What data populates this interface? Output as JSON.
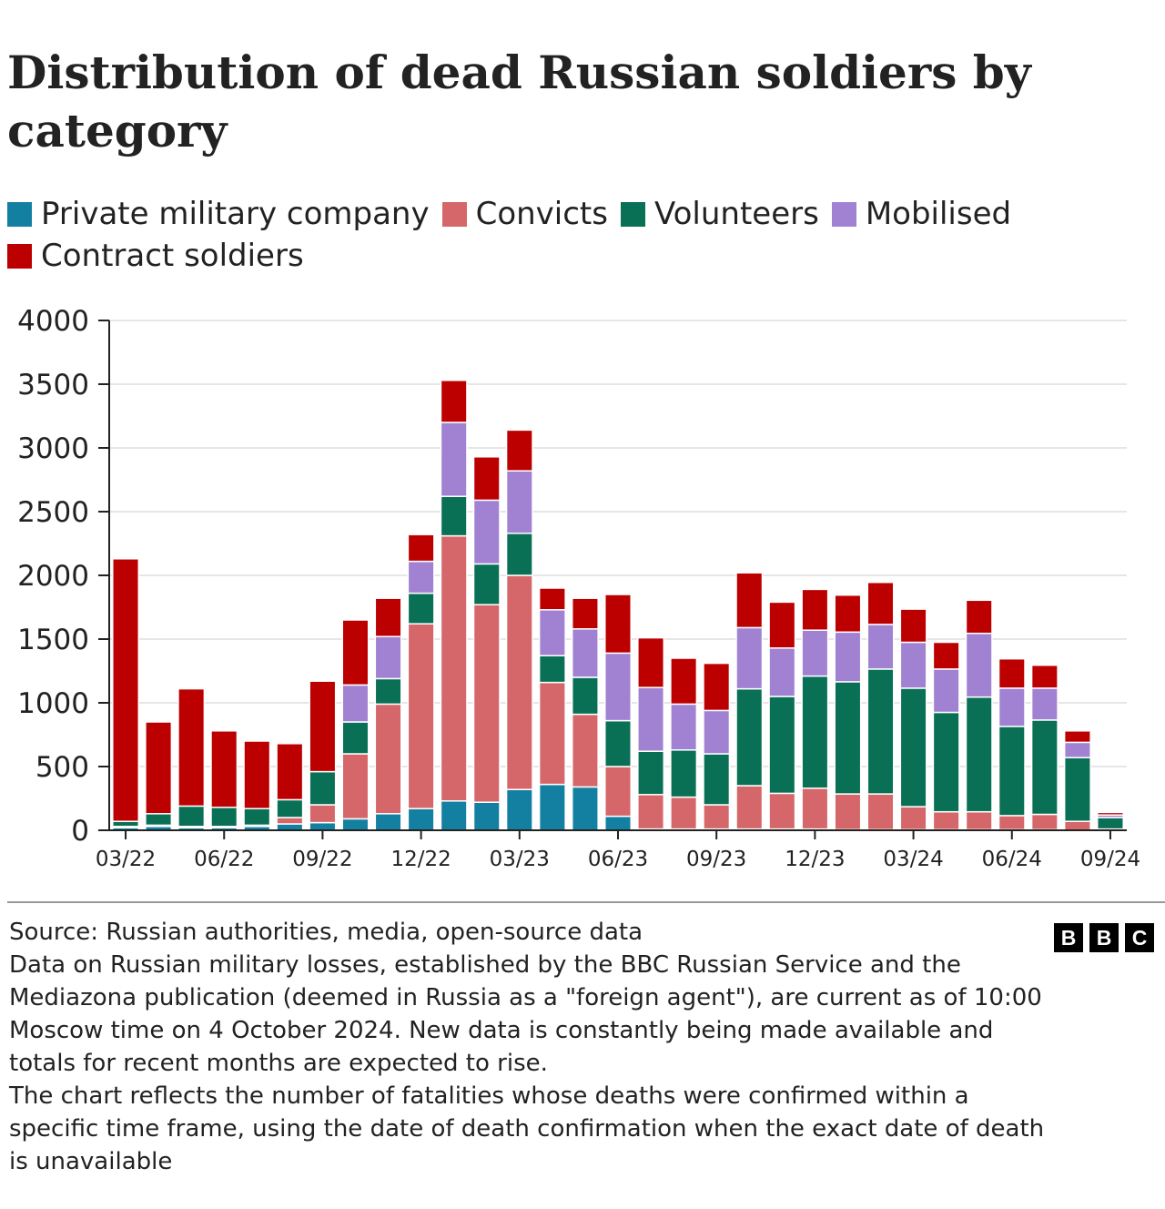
{
  "title": "Distribution of dead Russian soldiers by category",
  "colors": {
    "Private military company": "#1380A1",
    "Convicts": "#D5676A",
    "Volunteers": "#0A7055",
    "Mobilised": "#A182D2",
    "Contract soldiers": "#BC0000",
    "axis": "#222222",
    "grid": "#E6E6E6"
  },
  "legend": [
    "Private military company",
    "Convicts",
    "Volunteers",
    "Mobilised",
    "Contract soldiers"
  ],
  "footer": {
    "source": "Source: Russian authorities, media, open-source data",
    "note1": "Data on Russian military losses, established by the BBC Russian Service and the Mediazona publication (deemed in Russia as a \"foreign agent\"), are current as of 10:00 Moscow time on 4 October 2024. New data is constantly being made available and totals for recent months are expected to rise.",
    "note2": "The chart reflects the number of fatalities whose deaths were confirmed within a specific time frame, using the date of death confirmation when the exact date of death is unavailable"
  },
  "logo": [
    "B",
    "B",
    "C"
  ],
  "chart_data": {
    "type": "bar",
    "stacked": true,
    "title": "Distribution of dead Russian soldiers by category",
    "xlabel": "",
    "ylabel": "",
    "ylim": [
      0,
      4000
    ],
    "yticks": [
      0,
      500,
      1000,
      1500,
      2000,
      2500,
      3000,
      3500,
      4000
    ],
    "grid": true,
    "legend_position": "top",
    "categories": [
      "03/22",
      "04/22",
      "05/22",
      "06/22",
      "07/22",
      "08/22",
      "09/22",
      "10/22",
      "11/22",
      "12/22",
      "01/23",
      "02/23",
      "03/23",
      "04/23",
      "05/23",
      "06/23",
      "07/23",
      "08/23",
      "09/23",
      "10/23",
      "11/23",
      "12/23",
      "01/24",
      "02/24",
      "03/24",
      "04/24",
      "05/24",
      "06/24",
      "07/24",
      "08/24",
      "09/24"
    ],
    "xtick_labels": [
      "03/22",
      "06/22",
      "09/22",
      "12/22",
      "03/23",
      "06/23",
      "09/23",
      "12/23",
      "03/24",
      "06/24",
      "09/24"
    ],
    "series": [
      {
        "name": "Private military company",
        "values": [
          20,
          30,
          20,
          20,
          30,
          50,
          60,
          90,
          130,
          170,
          230,
          220,
          320,
          360,
          340,
          110,
          10,
          10,
          10,
          10,
          10,
          10,
          5,
          5,
          5,
          5,
          5,
          5,
          5,
          0,
          0
        ]
      },
      {
        "name": "Convicts",
        "values": [
          10,
          10,
          10,
          10,
          10,
          50,
          140,
          510,
          860,
          1450,
          2080,
          1550,
          1680,
          800,
          570,
          390,
          270,
          250,
          190,
          340,
          280,
          320,
          280,
          280,
          180,
          140,
          140,
          110,
          120,
          70,
          10
        ]
      },
      {
        "name": "Volunteers",
        "values": [
          40,
          90,
          160,
          150,
          130,
          140,
          260,
          250,
          200,
          240,
          310,
          320,
          330,
          210,
          290,
          360,
          340,
          370,
          400,
          760,
          760,
          880,
          880,
          980,
          930,
          780,
          900,
          700,
          740,
          500,
          90
        ]
      },
      {
        "name": "Mobilised",
        "values": [
          0,
          0,
          0,
          0,
          0,
          0,
          0,
          290,
          330,
          250,
          580,
          500,
          490,
          360,
          380,
          530,
          500,
          360,
          340,
          480,
          380,
          360,
          390,
          350,
          360,
          340,
          500,
          300,
          250,
          120,
          20
        ]
      },
      {
        "name": "Contract soldiers",
        "values": [
          2060,
          720,
          920,
          600,
          530,
          440,
          710,
          510,
          300,
          210,
          330,
          340,
          320,
          170,
          240,
          460,
          390,
          360,
          370,
          430,
          360,
          320,
          290,
          330,
          260,
          210,
          260,
          230,
          180,
          90,
          20
        ]
      }
    ]
  }
}
